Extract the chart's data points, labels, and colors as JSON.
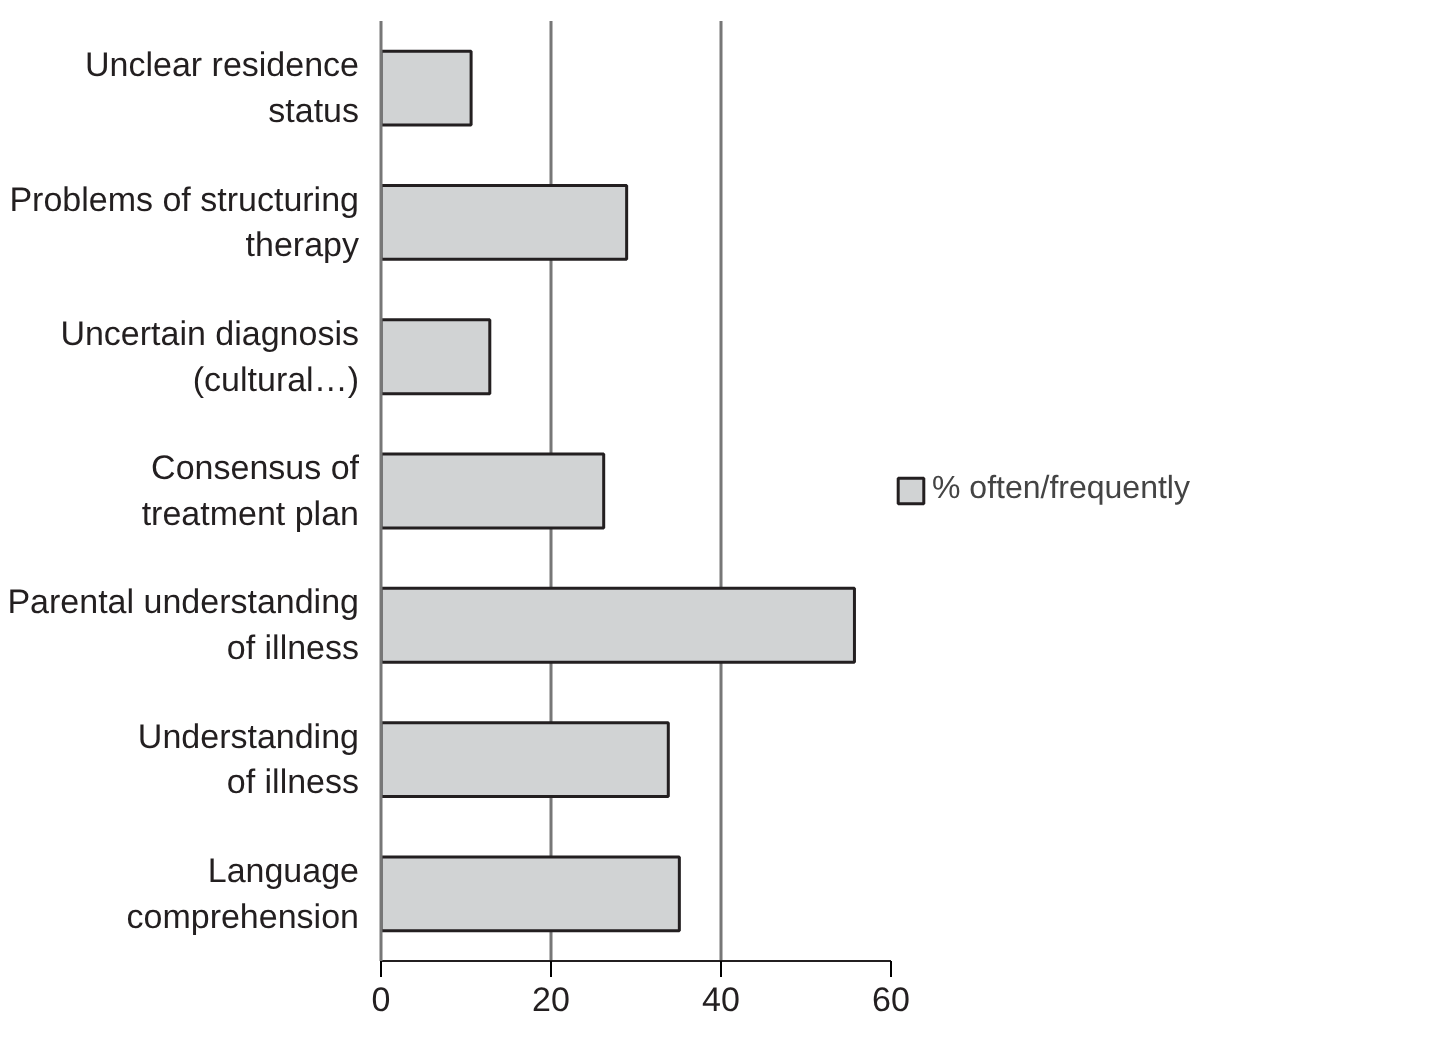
{
  "chart_data": {
    "type": "bar",
    "orientation": "horizontal",
    "categories": [
      "Unclear residence\nstatus",
      "Problems of structuring\ntherapy",
      "Uncertain diagnosis\n(cultural…)",
      "Consensus of\ntreatment plan",
      "Parental understanding\nof illness",
      "Understanding\nof illness",
      "Language\ncomprehension"
    ],
    "series": [
      {
        "name": "% often/frequently",
        "color": "#d1d3d4",
        "values": [
          10.6,
          28.9,
          12.8,
          26.2,
          55.7,
          33.8,
          35.1
        ]
      }
    ],
    "xlim": [
      0,
      60
    ],
    "xticks": [
      0,
      20,
      40,
      60
    ],
    "grid": "x",
    "legend": "right"
  }
}
